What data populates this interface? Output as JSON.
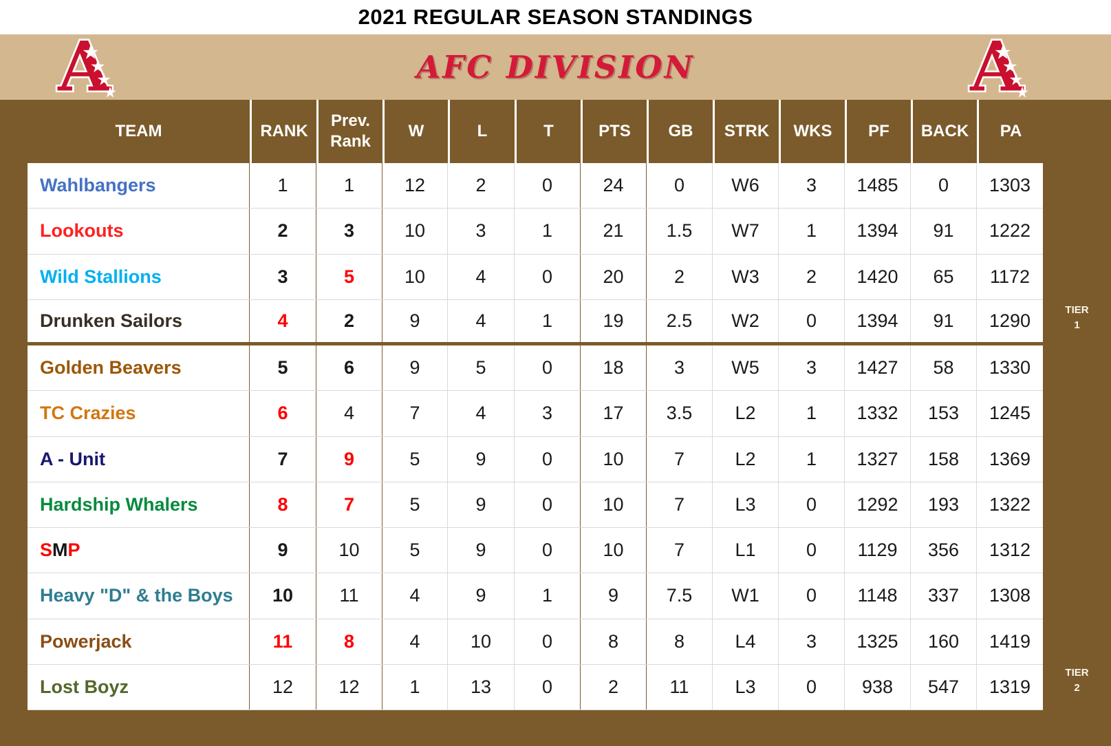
{
  "title": "2021 REGULAR SEASON STANDINGS",
  "banner": {
    "division_label": "AFC DIVISION",
    "logo_letter": "A",
    "colors": {
      "band_tan": "#D3B78E",
      "division_red": "#D31A38",
      "logo_red": "#C9102F"
    }
  },
  "colors": {
    "table_brown": "#7B5B2B",
    "grid_gray": "#D9D9D9",
    "rank_red": "#FF0000"
  },
  "tier_labels": [
    {
      "word": "TIER",
      "number": "1"
    },
    {
      "word": "TIER",
      "number": "2"
    }
  ],
  "standings": {
    "columns": [
      "TEAM",
      "RANK",
      "Prev. Rank",
      "W",
      "L",
      "T",
      "PTS",
      "GB",
      "STRK",
      "WKS",
      "PF",
      "BACK",
      "PA"
    ],
    "tier_break_after_row": 4,
    "rows": [
      {
        "team": [
          {
            "text": "Wahlbangers",
            "color": "#4472C4"
          }
        ],
        "rank": {
          "value": "1",
          "red": false,
          "bold": false
        },
        "prev": {
          "value": "1",
          "red": false,
          "bold": false
        },
        "stats": [
          "12",
          "2",
          "0",
          "24",
          "0",
          "W6",
          "3",
          "1485",
          "0",
          "1303"
        ]
      },
      {
        "team": [
          {
            "text": "Lookouts",
            "color": "#FF2020"
          }
        ],
        "rank": {
          "value": "2",
          "red": false,
          "bold": true
        },
        "prev": {
          "value": "3",
          "red": false,
          "bold": true
        },
        "stats": [
          "10",
          "3",
          "1",
          "21",
          "1.5",
          "W7",
          "1",
          "1394",
          "91",
          "1222"
        ]
      },
      {
        "team": [
          {
            "text": "Wild Stallions",
            "color": "#00B0F0"
          }
        ],
        "rank": {
          "value": "3",
          "red": false,
          "bold": true
        },
        "prev": {
          "value": "5",
          "red": true,
          "bold": true
        },
        "stats": [
          "10",
          "4",
          "0",
          "20",
          "2",
          "W3",
          "2",
          "1420",
          "65",
          "1172"
        ]
      },
      {
        "team": [
          {
            "text": "Drunken Sailors",
            "color": "#382E24"
          }
        ],
        "rank": {
          "value": "4",
          "red": true,
          "bold": true
        },
        "prev": {
          "value": "2",
          "red": false,
          "bold": true
        },
        "stats": [
          "9",
          "4",
          "1",
          "19",
          "2.5",
          "W2",
          "0",
          "1394",
          "91",
          "1290"
        ]
      },
      {
        "team": [
          {
            "text": "Golden Beavers",
            "color": "#9C5708"
          }
        ],
        "rank": {
          "value": "5",
          "red": false,
          "bold": true
        },
        "prev": {
          "value": "6",
          "red": false,
          "bold": true
        },
        "stats": [
          "9",
          "5",
          "0",
          "18",
          "3",
          "W5",
          "3",
          "1427",
          "58",
          "1330"
        ]
      },
      {
        "team": [
          {
            "text": "TC Crazies",
            "color": "#D2760E"
          }
        ],
        "rank": {
          "value": "6",
          "red": true,
          "bold": true
        },
        "prev": {
          "value": "4",
          "red": false,
          "bold": false
        },
        "stats": [
          "7",
          "4",
          "3",
          "17",
          "3.5",
          "L2",
          "1",
          "1332",
          "153",
          "1245"
        ]
      },
      {
        "team": [
          {
            "text": "A - Unit",
            "color": "#171770"
          }
        ],
        "rank": {
          "value": "7",
          "red": false,
          "bold": true
        },
        "prev": {
          "value": "9",
          "red": true,
          "bold": true
        },
        "stats": [
          "5",
          "9",
          "0",
          "10",
          "7",
          "L2",
          "1",
          "1327",
          "158",
          "1369"
        ]
      },
      {
        "team": [
          {
            "text": "Hardship Whalers",
            "color": "#068A3E"
          }
        ],
        "rank": {
          "value": "8",
          "red": true,
          "bold": true
        },
        "prev": {
          "value": "7",
          "red": true,
          "bold": true
        },
        "stats": [
          "5",
          "9",
          "0",
          "10",
          "7",
          "L3",
          "0",
          "1292",
          "193",
          "1322"
        ]
      },
      {
        "team": [
          {
            "text": "S",
            "color": "#FF0000"
          },
          {
            "text": "M",
            "color": "#141414"
          },
          {
            "text": "P",
            "color": "#FF0000"
          }
        ],
        "rank": {
          "value": "9",
          "red": false,
          "bold": true
        },
        "prev": {
          "value": "10",
          "red": false,
          "bold": false
        },
        "stats": [
          "5",
          "9",
          "0",
          "10",
          "7",
          "L1",
          "0",
          "1129",
          "356",
          "1312"
        ]
      },
      {
        "team": [
          {
            "text": "Heavy \"D\" & the Boys",
            "color": "#2E7D91"
          }
        ],
        "rank": {
          "value": "10",
          "red": false,
          "bold": true
        },
        "prev": {
          "value": "11",
          "red": false,
          "bold": false
        },
        "stats": [
          "4",
          "9",
          "1",
          "9",
          "7.5",
          "W1",
          "0",
          "1148",
          "337",
          "1308"
        ]
      },
      {
        "team": [
          {
            "text": "Powerjack",
            "color": "#8A4E15"
          }
        ],
        "rank": {
          "value": "11",
          "red": true,
          "bold": true
        },
        "prev": {
          "value": "8",
          "red": true,
          "bold": true
        },
        "stats": [
          "4",
          "10",
          "0",
          "8",
          "8",
          "L4",
          "3",
          "1325",
          "160",
          "1419"
        ]
      },
      {
        "team": [
          {
            "text": "Lost Boyz",
            "color": "#55672B"
          }
        ],
        "rank": {
          "value": "12",
          "red": false,
          "bold": false
        },
        "prev": {
          "value": "12",
          "red": false,
          "bold": false
        },
        "stats": [
          "1",
          "13",
          "0",
          "2",
          "11",
          "L3",
          "0",
          "938",
          "547",
          "1319"
        ]
      }
    ]
  }
}
